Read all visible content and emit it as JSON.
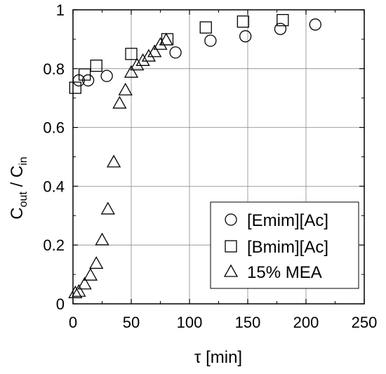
{
  "chart_data": {
    "type": "scatter",
    "xlabel": "τ [min]",
    "ylabel_main": "C",
    "ylabel_sub1": "out",
    "ylabel_slash": " / C",
    "ylabel_sub2": "in",
    "xlim": [
      0,
      250
    ],
    "ylim": [
      0,
      1
    ],
    "xticks": [
      "0",
      "50",
      "100",
      "150",
      "200",
      "250"
    ],
    "yticks": [
      "0",
      "0.2",
      "0.4",
      "0.6",
      "0.8",
      "1"
    ],
    "grid": true,
    "legend_position": "bottom-right",
    "series": [
      {
        "name": "[Emim][Ac]",
        "marker": "circle",
        "points": [
          [
            5,
            0.76
          ],
          [
            13,
            0.76
          ],
          [
            29,
            0.775
          ],
          [
            88,
            0.855
          ],
          [
            118,
            0.895
          ],
          [
            148,
            0.91
          ],
          [
            178,
            0.935
          ],
          [
            208,
            0.95
          ]
        ]
      },
      {
        "name": "[Bmim][Ac]",
        "marker": "square",
        "points": [
          [
            2,
            0.735
          ],
          [
            10,
            0.78
          ],
          [
            20,
            0.81
          ],
          [
            50,
            0.85
          ],
          [
            81,
            0.9
          ],
          [
            114,
            0.94
          ],
          [
            146,
            0.96
          ],
          [
            180,
            0.965
          ]
        ]
      },
      {
        "name": "15% MEA",
        "marker": "triangle",
        "points": [
          [
            2,
            0.035
          ],
          [
            5,
            0.04
          ],
          [
            10,
            0.065
          ],
          [
            15,
            0.095
          ],
          [
            20,
            0.135
          ],
          [
            25,
            0.215
          ],
          [
            30,
            0.32
          ],
          [
            35,
            0.48
          ],
          [
            40,
            0.68
          ],
          [
            45,
            0.725
          ],
          [
            50,
            0.785
          ],
          [
            55,
            0.81
          ],
          [
            60,
            0.825
          ],
          [
            65,
            0.84
          ],
          [
            70,
            0.855
          ],
          [
            75,
            0.88
          ],
          [
            80,
            0.895
          ]
        ]
      }
    ]
  }
}
